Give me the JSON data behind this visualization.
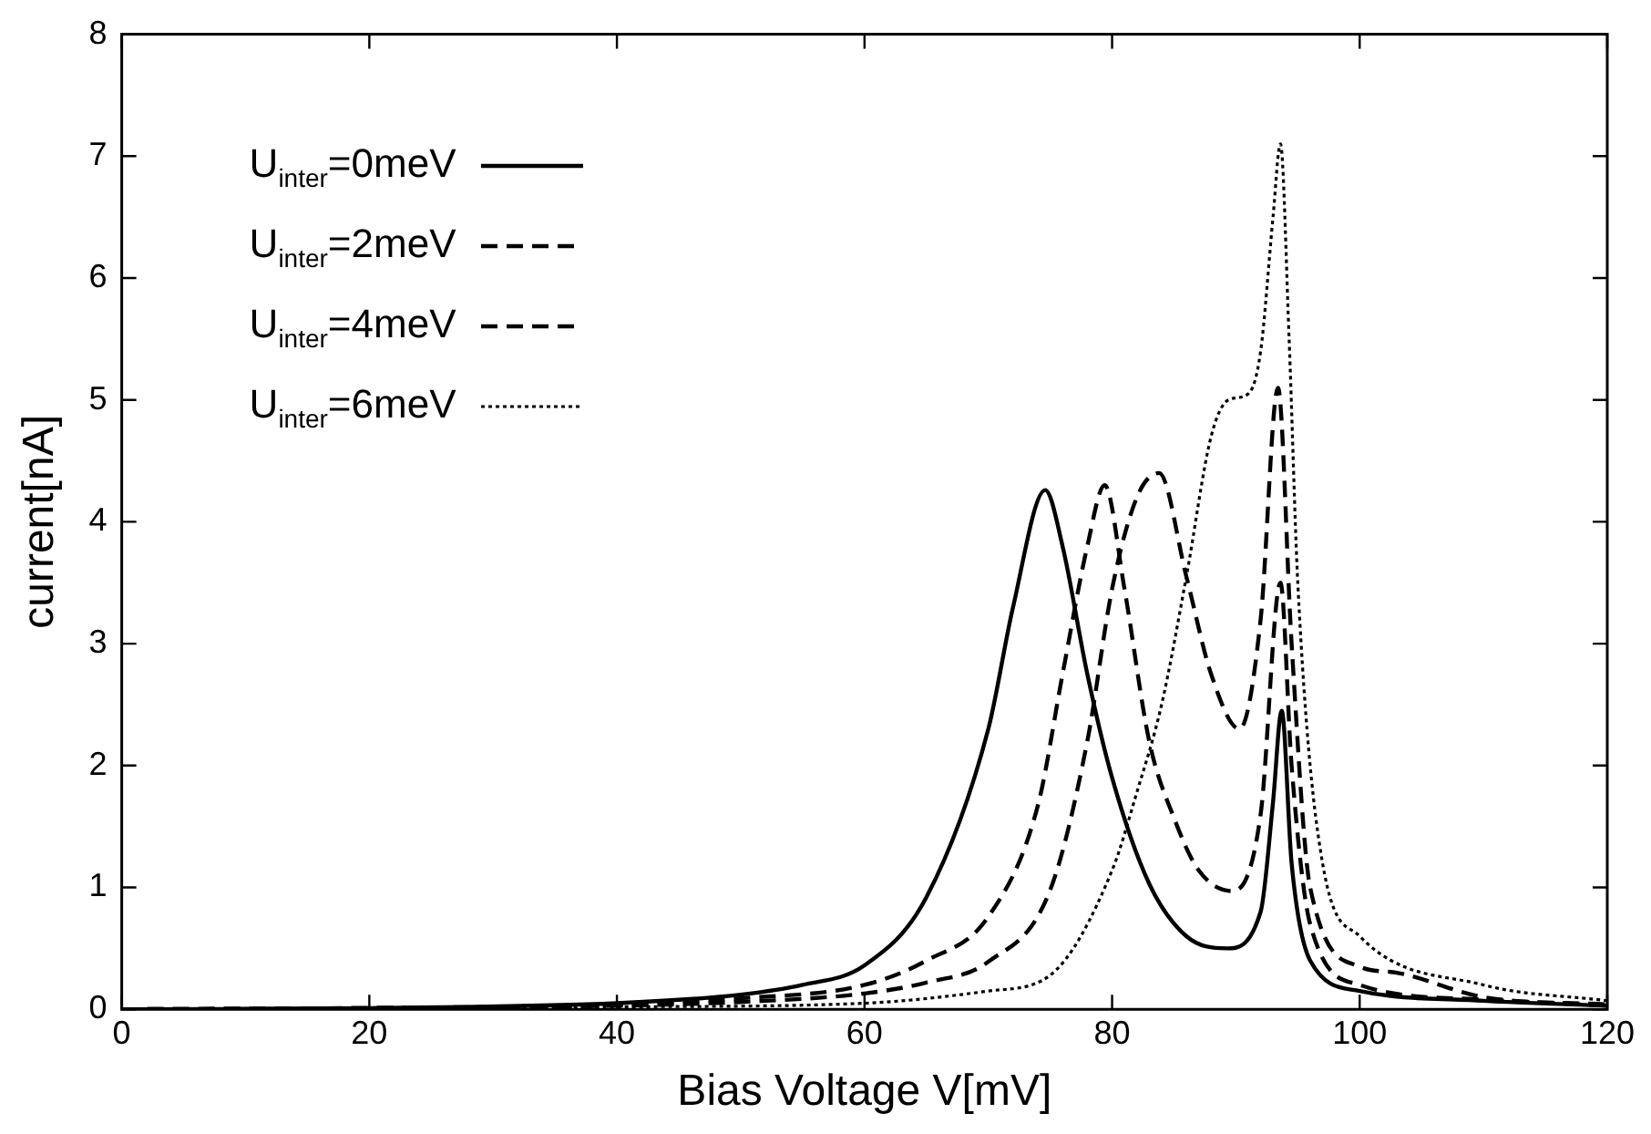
{
  "chart_data": {
    "type": "line",
    "xlabel": "Bias Voltage V[mV]",
    "ylabel": "current[nA]",
    "xlim": [
      0,
      120
    ],
    "ylim": [
      0,
      8
    ],
    "xticks": [
      0,
      20,
      40,
      60,
      80,
      100,
      120
    ],
    "yticks": [
      0,
      1,
      2,
      3,
      4,
      5,
      6,
      7,
      8
    ],
    "grid": false,
    "legend": "top left",
    "marker": "none",
    "series": [
      {
        "name": "U$_{inter}$=0meV",
        "color": "#000000",
        "line_style": "solid",
        "x": [
          0,
          20,
          40,
          50,
          55,
          60,
          65,
          70,
          72,
          74.6,
          76,
          78,
          80,
          83,
          86,
          89.3,
          92,
          93,
          93.7,
          94.5,
          96,
          100,
          110,
          120
        ],
        "values": [
          0,
          0.01,
          0.05,
          0.12,
          0.2,
          0.36,
          0.92,
          2.3,
          3.3,
          4.26,
          3.8,
          2.75,
          1.9,
          1.03,
          0.6,
          0.5,
          0.8,
          1.7,
          2.45,
          1.2,
          0.4,
          0.15,
          0.07,
          0.03
        ]
      },
      {
        "name": "U$_{inter}$=2meV",
        "color": "#000000",
        "line_style": "dashed",
        "x": [
          0,
          20,
          40,
          50,
          60,
          65,
          70,
          74,
          76,
          78,
          79.4,
          81,
          83,
          85,
          87,
          89.7,
          92,
          93.6,
          94.5,
          96,
          100,
          110,
          120
        ],
        "values": [
          0,
          0.01,
          0.04,
          0.09,
          0.2,
          0.4,
          0.76,
          1.67,
          2.75,
          3.8,
          4.3,
          3.45,
          2.2,
          1.57,
          1.14,
          0.97,
          1.6,
          3.5,
          2,
          0.7,
          0.2,
          0.08,
          0.03
        ]
      },
      {
        "name": "U$_{inter}$=4meV",
        "color": "#000000",
        "line_style": "dashed",
        "x": [
          0,
          20,
          40,
          50,
          60,
          65,
          70,
          75,
          78,
          80,
          82,
          83.8,
          86,
          88,
          90.3,
          92,
          93.4,
          94.5,
          96,
          100,
          103,
          110,
          120
        ],
        "values": [
          0,
          0.01,
          0.03,
          0.06,
          0.13,
          0.22,
          0.39,
          0.98,
          2.2,
          3.45,
          4.2,
          4.4,
          3.55,
          2.75,
          2.3,
          3.2,
          5.1,
          3,
          1,
          0.35,
          0.3,
          0.1,
          0.04
        ]
      },
      {
        "name": "U$_{inter}$=6meV",
        "color": "#000000",
        "line_style": "dotted",
        "x": [
          0,
          20,
          40,
          60,
          70,
          75,
          80,
          82,
          84,
          86,
          88,
          89.4,
          91,
          92,
          93,
          93.6,
          94.3,
          95,
          97,
          100,
          110,
          120
        ],
        "values": [
          0,
          0.01,
          0.02,
          0.05,
          0.15,
          0.28,
          1.14,
          1.78,
          2.5,
          3.55,
          4.7,
          5.0,
          5.05,
          5.4,
          6.5,
          7.1,
          5.5,
          3.5,
          1.2,
          0.6,
          0.2,
          0.07
        ]
      }
    ]
  }
}
